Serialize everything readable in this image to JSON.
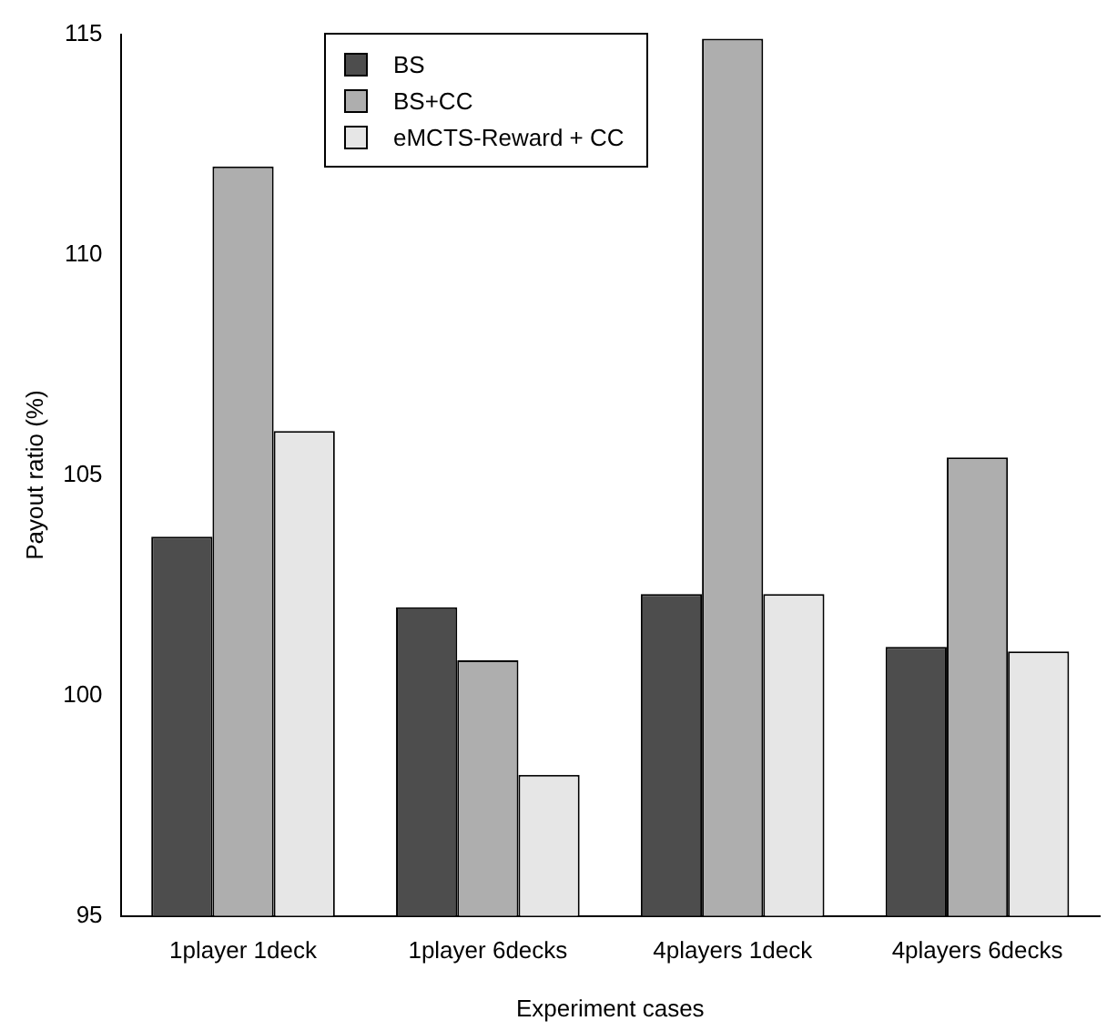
{
  "chart_data": {
    "type": "bar",
    "xlabel": "Experiment cases",
    "ylabel": "Payout ratio (%)",
    "categories": [
      "1player 1deck",
      "1player 6decks",
      "4players 1deck",
      "4players 6decks"
    ],
    "series": [
      {
        "name": "BS",
        "color": "#4d4d4d",
        "values": [
          103.6,
          102.0,
          102.3,
          101.1
        ]
      },
      {
        "name": "BS+CC",
        "color": "#aeaeae",
        "values": [
          112.0,
          100.8,
          114.9,
          105.4
        ]
      },
      {
        "name": "eMCTS-Reward + CC",
        "color": "#e6e6e6",
        "values": [
          106.0,
          98.2,
          102.3,
          101.0
        ]
      }
    ],
    "ylim": [
      95,
      115
    ],
    "yticks": [
      95,
      100,
      105,
      110,
      115
    ],
    "grid": false,
    "legend": "top left"
  }
}
